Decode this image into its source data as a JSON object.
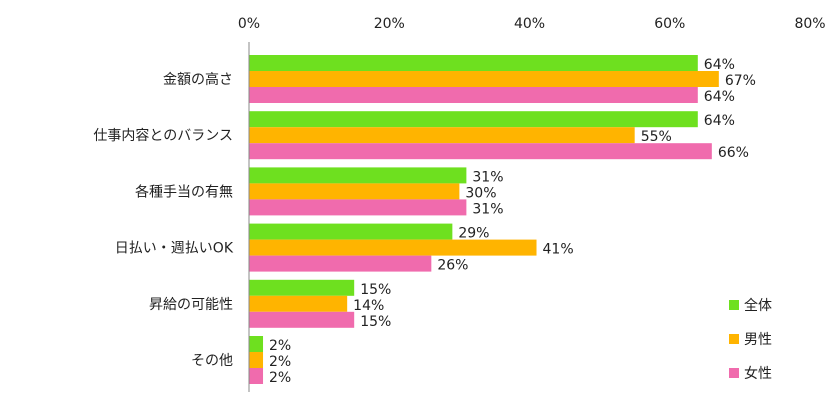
{
  "chart_data": {
    "type": "bar",
    "orientation": "horizontal",
    "categories": [
      "金額の高さ",
      "仕事内容とのバランス",
      "各種手当の有無",
      "日払い・週払いOK",
      "昇給の可能性",
      "その他"
    ],
    "series": [
      {
        "name": "全体",
        "values": [
          64,
          64,
          31,
          29,
          15,
          2
        ],
        "color": "#6ee01f"
      },
      {
        "name": "男性",
        "values": [
          67,
          55,
          30,
          41,
          14,
          2
        ],
        "color": "#ffb400"
      },
      {
        "name": "女性",
        "values": [
          64,
          66,
          31,
          26,
          15,
          2
        ],
        "color": "#f06bad"
      }
    ],
    "value_suffix": "%",
    "xlim": [
      0,
      80
    ],
    "xticks": [
      0,
      20,
      40,
      60,
      80
    ],
    "xtick_labels": [
      "0%",
      "20%",
      "40%",
      "60%",
      "80%"
    ],
    "axis_position": "top",
    "grid": false,
    "legend_position": "bottom-right",
    "title": "",
    "xlabel": "",
    "ylabel": ""
  }
}
